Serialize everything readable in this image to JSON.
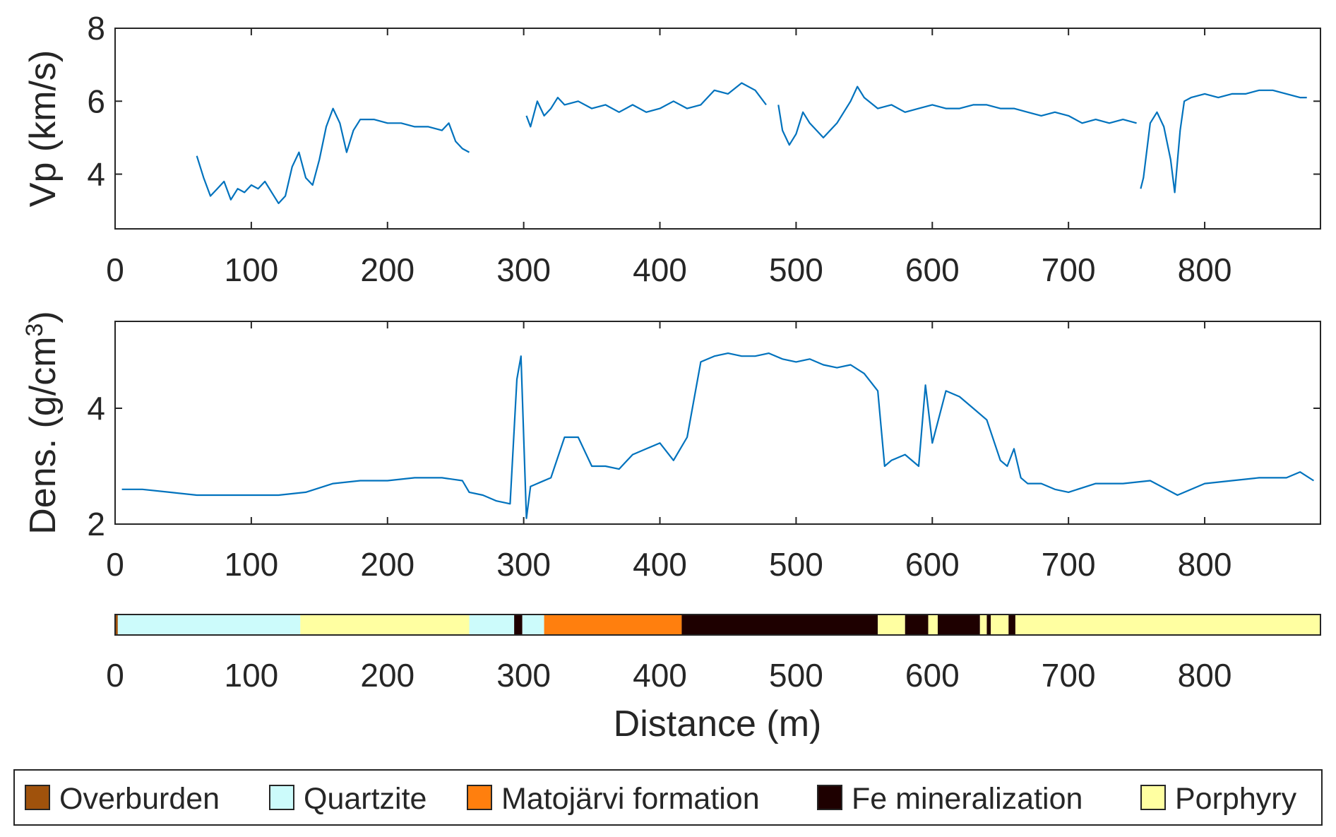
{
  "chart_data": [
    {
      "type": "line",
      "ylabel": "Vp (km/s)",
      "xlim": [
        0,
        885
      ],
      "ylim": [
        2.5,
        8
      ],
      "xticks": [
        0,
        100,
        200,
        300,
        400,
        500,
        600,
        700,
        800
      ],
      "yticks": [
        4,
        6,
        8
      ],
      "line_color": "#0072BD",
      "series": [
        {
          "segments": [
            {
              "x": [
                60,
                65,
                70,
                75,
                80,
                85,
                90,
                95,
                100,
                105,
                110,
                115,
                120,
                125,
                130,
                135,
                140,
                145,
                150,
                155,
                160,
                165,
                170,
                175,
                180,
                190,
                200,
                210,
                220,
                230,
                240,
                245,
                250,
                255,
                260
              ],
              "y": [
                4.5,
                3.9,
                3.4,
                3.6,
                3.8,
                3.3,
                3.6,
                3.5,
                3.7,
                3.6,
                3.8,
                3.5,
                3.2,
                3.4,
                4.2,
                4.6,
                3.9,
                3.7,
                4.4,
                5.3,
                5.8,
                5.4,
                4.6,
                5.2,
                5.5,
                5.5,
                5.4,
                5.4,
                5.3,
                5.3,
                5.2,
                5.4,
                4.9,
                4.7,
                4.6
              ]
            },
            {
              "x": [
                302,
                305,
                310,
                315,
                320,
                325,
                330,
                340,
                350,
                360,
                370,
                380,
                390,
                400,
                410,
                420,
                430,
                440,
                450,
                460,
                470,
                478
              ],
              "y": [
                5.6,
                5.3,
                6.0,
                5.6,
                5.8,
                6.1,
                5.9,
                6.0,
                5.8,
                5.9,
                5.7,
                5.9,
                5.7,
                5.8,
                6.0,
                5.8,
                5.9,
                6.3,
                6.2,
                6.5,
                6.3,
                5.9
              ]
            },
            {
              "x": [
                487,
                490,
                495,
                500,
                505,
                510,
                520,
                530,
                540,
                545,
                550,
                560,
                570,
                580,
                590,
                600,
                610,
                620,
                630,
                640,
                650,
                660,
                670,
                680,
                690,
                700,
                710,
                720,
                730,
                740,
                750
              ],
              "y": [
                5.9,
                5.2,
                4.8,
                5.1,
                5.7,
                5.4,
                5.0,
                5.4,
                6.0,
                6.4,
                6.1,
                5.8,
                5.9,
                5.7,
                5.8,
                5.9,
                5.8,
                5.8,
                5.9,
                5.9,
                5.8,
                5.8,
                5.7,
                5.6,
                5.7,
                5.6,
                5.4,
                5.5,
                5.4,
                5.5,
                5.4
              ]
            },
            {
              "x": [
                753,
                755,
                760,
                765,
                770,
                775,
                778,
                782,
                785,
                790,
                800,
                810,
                820,
                830,
                840,
                850,
                860,
                870,
                875
              ],
              "y": [
                3.6,
                3.9,
                5.4,
                5.7,
                5.3,
                4.4,
                3.5,
                5.2,
                6.0,
                6.1,
                6.2,
                6.1,
                6.2,
                6.2,
                6.3,
                6.3,
                6.2,
                6.1,
                6.1
              ]
            }
          ]
        }
      ]
    },
    {
      "type": "line",
      "ylabel": "Dens. (g/cm",
      "ylabel_sup": "3",
      "ylabel_tail": ")",
      "xlim": [
        0,
        885
      ],
      "ylim": [
        2,
        5.5
      ],
      "xticks": [
        0,
        100,
        200,
        300,
        400,
        500,
        600,
        700,
        800
      ],
      "yticks": [
        2,
        4
      ],
      "line_color": "#0072BD",
      "series": [
        {
          "x": [
            5,
            20,
            40,
            60,
            80,
            100,
            120,
            140,
            160,
            180,
            200,
            220,
            240,
            255,
            260,
            270,
            280,
            290,
            295,
            298,
            302,
            305,
            310,
            320,
            330,
            340,
            350,
            360,
            370,
            380,
            390,
            400,
            410,
            420,
            430,
            440,
            450,
            460,
            470,
            480,
            490,
            500,
            510,
            520,
            530,
            540,
            550,
            560,
            565,
            570,
            580,
            590,
            595,
            600,
            610,
            620,
            630,
            640,
            650,
            655,
            660,
            665,
            670,
            680,
            690,
            700,
            720,
            740,
            760,
            780,
            800,
            820,
            840,
            860,
            870,
            880
          ],
          "y": [
            2.6,
            2.6,
            2.55,
            2.5,
            2.5,
            2.5,
            2.5,
            2.55,
            2.7,
            2.75,
            2.75,
            2.8,
            2.8,
            2.75,
            2.55,
            2.5,
            2.4,
            2.35,
            4.5,
            4.9,
            2.1,
            2.65,
            2.7,
            2.8,
            3.5,
            3.5,
            3.0,
            3.0,
            2.95,
            3.2,
            3.3,
            3.4,
            3.1,
            3.5,
            4.8,
            4.9,
            4.95,
            4.9,
            4.9,
            4.95,
            4.85,
            4.8,
            4.85,
            4.75,
            4.7,
            4.75,
            4.6,
            4.3,
            3.0,
            3.1,
            3.2,
            3.0,
            4.4,
            3.4,
            4.3,
            4.2,
            4.0,
            3.8,
            3.1,
            3.0,
            3.3,
            2.8,
            2.7,
            2.7,
            2.6,
            2.55,
            2.7,
            2.7,
            2.75,
            2.5,
            2.7,
            2.75,
            2.8,
            2.8,
            2.9,
            2.75
          ]
        }
      ]
    },
    {
      "type": "bar",
      "subtype": "lithology-strip",
      "xlabel": "Distance (m)",
      "xlim": [
        0,
        885
      ],
      "xticks": [
        0,
        100,
        200,
        300,
        400,
        500,
        600,
        700,
        800
      ],
      "intervals": [
        {
          "from": 0,
          "to": 2,
          "unit": "Overburden"
        },
        {
          "from": 2,
          "to": 136,
          "unit": "Quartzite"
        },
        {
          "from": 136,
          "to": 260,
          "unit": "Porphyry"
        },
        {
          "from": 260,
          "to": 293,
          "unit": "Quartzite"
        },
        {
          "from": 293,
          "to": 299,
          "unit": "Fe mineralization"
        },
        {
          "from": 299,
          "to": 315,
          "unit": "Quartzite"
        },
        {
          "from": 315,
          "to": 416,
          "unit": "Matojärvi formation"
        },
        {
          "from": 416,
          "to": 560,
          "unit": "Fe mineralization"
        },
        {
          "from": 560,
          "to": 580,
          "unit": "Porphyry"
        },
        {
          "from": 580,
          "to": 597,
          "unit": "Fe mineralization"
        },
        {
          "from": 597,
          "to": 604,
          "unit": "Porphyry"
        },
        {
          "from": 604,
          "to": 635,
          "unit": "Fe mineralization"
        },
        {
          "from": 635,
          "to": 640,
          "unit": "Porphyry"
        },
        {
          "from": 640,
          "to": 643,
          "unit": "Fe mineralization"
        },
        {
          "from": 643,
          "to": 656,
          "unit": "Porphyry"
        },
        {
          "from": 656,
          "to": 661,
          "unit": "Fe mineralization"
        },
        {
          "from": 661,
          "to": 885,
          "unit": "Porphyry"
        }
      ]
    }
  ],
  "legend": {
    "placement": "bottom",
    "items": [
      {
        "label": "Overburden",
        "color": "#A0520C"
      },
      {
        "label": "Quartzite",
        "color": "#CCFBFB"
      },
      {
        "label": "Matojärvi formation",
        "color": "#FF7F0E"
      },
      {
        "label": "Fe mineralization",
        "color": "#1E0000"
      },
      {
        "label": "Porphyry",
        "color": "#FFFFA1"
      }
    ]
  }
}
